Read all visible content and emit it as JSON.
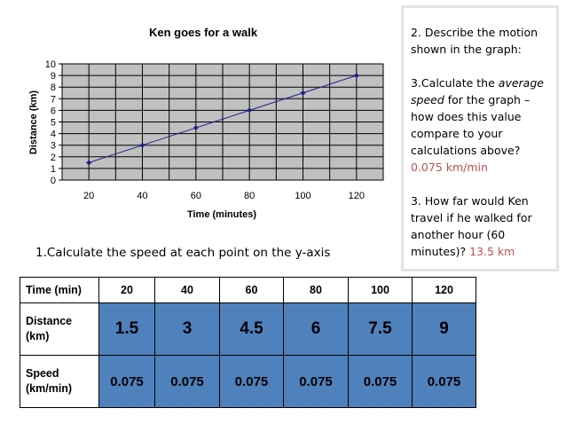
{
  "chart_data": {
    "type": "line",
    "title": "Ken goes for a walk",
    "xlabel": "Time (minutes)",
    "ylabel": "Distance (km)",
    "x": [
      20,
      40,
      60,
      80,
      100,
      120
    ],
    "y": [
      1.5,
      3,
      4.5,
      6,
      7.5,
      9
    ],
    "x_ticks": [
      "20",
      "40",
      "60",
      "80",
      "100",
      "120"
    ],
    "y_ticks": [
      "0",
      "1",
      "2",
      "3",
      "4",
      "5",
      "6",
      "7",
      "8",
      "9",
      "10"
    ],
    "ylim": [
      0,
      10
    ],
    "xlim": [
      10,
      130
    ],
    "grid": true,
    "legend": "none",
    "colors": {
      "line": "#1f1f8f",
      "marker": "#1f1f8f",
      "plot_bg": "#c0c0c0",
      "grid": "#000000"
    }
  },
  "side_panel": {
    "q2": "2. Describe the motion shown in the graph:",
    "q3_prefix": "3.Calculate the ",
    "q3_emph": "average speed",
    "q3_suffix": " for the graph – how does this value compare to your calculations above?",
    "q3_answer": "0.075 km/min",
    "q4": "3. How far would Ken travel if he walked for another hour (60 minutes)? ",
    "q4_answer": "13.5 km"
  },
  "question_1": "1.Calculate the speed at each point on the y-axis",
  "table": {
    "time_header": "Time (min)",
    "times": [
      "20",
      "40",
      "60",
      "80",
      "100",
      "120"
    ],
    "distance_header_line1": "Distance",
    "distance_header_line2": "(km)",
    "distances": [
      "1.5",
      "3",
      "4.5",
      "6",
      "7.5",
      "9"
    ],
    "speed_header_line1": "Speed",
    "speed_header_line2": "(km/min)",
    "speeds": [
      "0.075",
      "0.075",
      "0.075",
      "0.075",
      "0.075",
      "0.075"
    ],
    "highlight_color": "#4f81bd"
  }
}
